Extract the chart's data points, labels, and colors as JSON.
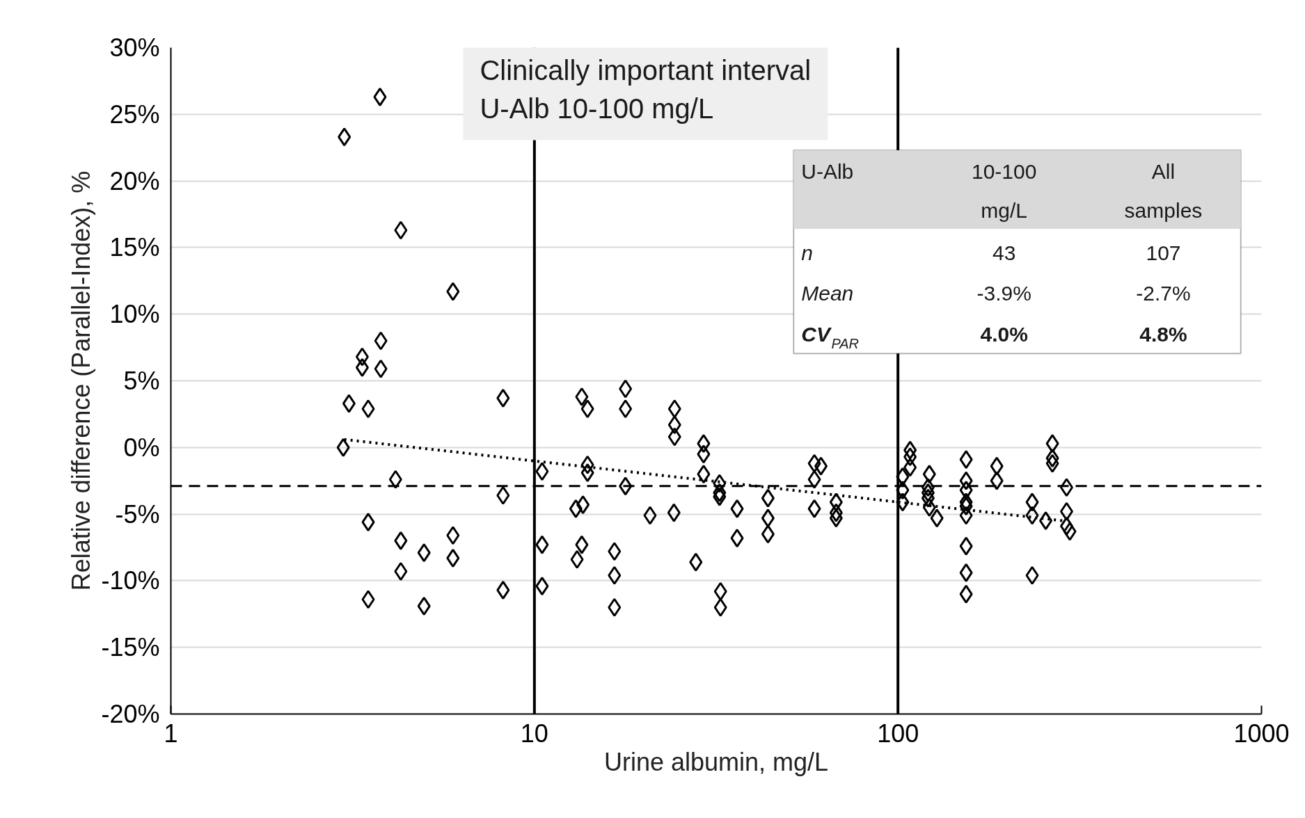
{
  "chart_data": {
    "type": "scatter",
    "xlabel": "Urine albumin, mg/L",
    "ylabel": "Relative difference (Parallel-Index), %",
    "log": "x",
    "xlim": [
      1,
      1000
    ],
    "xticks": [
      1,
      10,
      100,
      1000
    ],
    "ylim": [
      -20,
      30
    ],
    "yticks": [
      {
        "value": -20,
        "label": "-20%"
      },
      {
        "value": -15,
        "label": "-15%"
      },
      {
        "value": -10,
        "label": "-10%"
      },
      {
        "value": -5,
        "label": "-5%"
      },
      {
        "value": 0,
        "label": "0%"
      },
      {
        "value": 5,
        "label": "5%"
      },
      {
        "value": 10,
        "label": "10%"
      },
      {
        "value": 15,
        "label": "15%"
      },
      {
        "value": 20,
        "label": "20%"
      },
      {
        "value": 25,
        "label": "25%"
      },
      {
        "value": 30,
        "label": "30%"
      }
    ],
    "grid": "y",
    "marker": "diamond",
    "series": [
      {
        "color": "#000000",
        "x": [
          3.0,
          3.76,
          4.29,
          5.97,
          3.78,
          3.36,
          3.36,
          3.78,
          3.09,
          3.49,
          2.98,
          4.15,
          8.2,
          8.2,
          3.49,
          4.29,
          4.97,
          5.97,
          5.97,
          4.29,
          3.49,
          4.97,
          8.2,
          10.5,
          10.5,
          10.5,
          13.5,
          14.0,
          17.8,
          17.8,
          24.3,
          24.3,
          24.3,
          29.2,
          29.2,
          29.2,
          32.3,
          32.3,
          32.3,
          14.0,
          14.0,
          17.8,
          13.0,
          13.6,
          20.8,
          24.2,
          36.1,
          36.1,
          43.9,
          43.9,
          43.9,
          13.5,
          13.1,
          16.6,
          16.6,
          16.6,
          27.8,
          32.5,
          32.5,
          58.9,
          61.4,
          58.9,
          58.9,
          67.6,
          67.6,
          67.6,
          108,
          108,
          108,
          103,
          103,
          103,
          122,
          121,
          121,
          121,
          122,
          128,
          154,
          154,
          154,
          154,
          154,
          154,
          154,
          154,
          154,
          187,
          187,
          234,
          234,
          234,
          255,
          266,
          266,
          266,
          291,
          291,
          291,
          297
        ],
        "values": [
          23.3,
          26.3,
          16.3,
          11.7,
          8.0,
          6.8,
          6.0,
          5.9,
          3.3,
          2.9,
          0.0,
          -2.4,
          3.7,
          -3.6,
          -5.6,
          -7.0,
          -7.9,
          -6.6,
          -8.3,
          -9.3,
          -11.4,
          -11.9,
          -10.7,
          -1.8,
          -7.3,
          -10.4,
          3.8,
          2.9,
          4.4,
          2.9,
          2.9,
          1.7,
          0.8,
          0.3,
          -0.5,
          -2.0,
          -2.7,
          -3.4,
          -3.7,
          -1.3,
          -1.9,
          -2.9,
          -4.6,
          -4.3,
          -5.1,
          -4.9,
          -4.6,
          -6.8,
          -3.8,
          -5.3,
          -6.5,
          -7.3,
          -8.4,
          -7.8,
          -9.6,
          -12.0,
          -8.6,
          -10.8,
          -12.0,
          -1.2,
          -1.4,
          -2.4,
          -4.6,
          -4.1,
          -4.9,
          -5.3,
          -0.2,
          -0.7,
          -1.5,
          -2.2,
          -3.2,
          -4.1,
          -2.0,
          -3.0,
          -3.4,
          -3.8,
          -4.5,
          -5.3,
          -0.9,
          -2.5,
          -3.2,
          -4.1,
          -4.4,
          -5.1,
          -7.4,
          -9.4,
          -11.0,
          -1.4,
          -2.5,
          -4.1,
          -5.1,
          -9.6,
          -5.5,
          0.3,
          -0.8,
          -1.2,
          -3.0,
          -4.8,
          -5.9,
          -6.3
        ]
      },
      {
        "type": "line",
        "color": "#000000",
        "line_style": "dotted",
        "marker": "none",
        "x": [
          3.0,
          285
        ],
        "values": [
          0.6,
          -5.5
        ]
      }
    ],
    "ref_lines": [
      {
        "axis": "x",
        "value": 10,
        "color": "#000000",
        "line_style": "solid"
      },
      {
        "axis": "x",
        "value": 100,
        "color": "#000000",
        "line_style": "solid"
      },
      {
        "axis": "y",
        "value": -2.9,
        "color": "#000000",
        "line_style": "dashed"
      }
    ],
    "annotations": [
      "Clinically important interval",
      "U-Alb 10-100 mg/L",
      "U-Alb",
      "10-100 mg/L",
      "All samples",
      "n",
      "43",
      "107",
      "Mean",
      "-3.9%",
      "-2.7%",
      "CV$_{PAR}$",
      "4.0%",
      "4.8%"
    ]
  }
}
